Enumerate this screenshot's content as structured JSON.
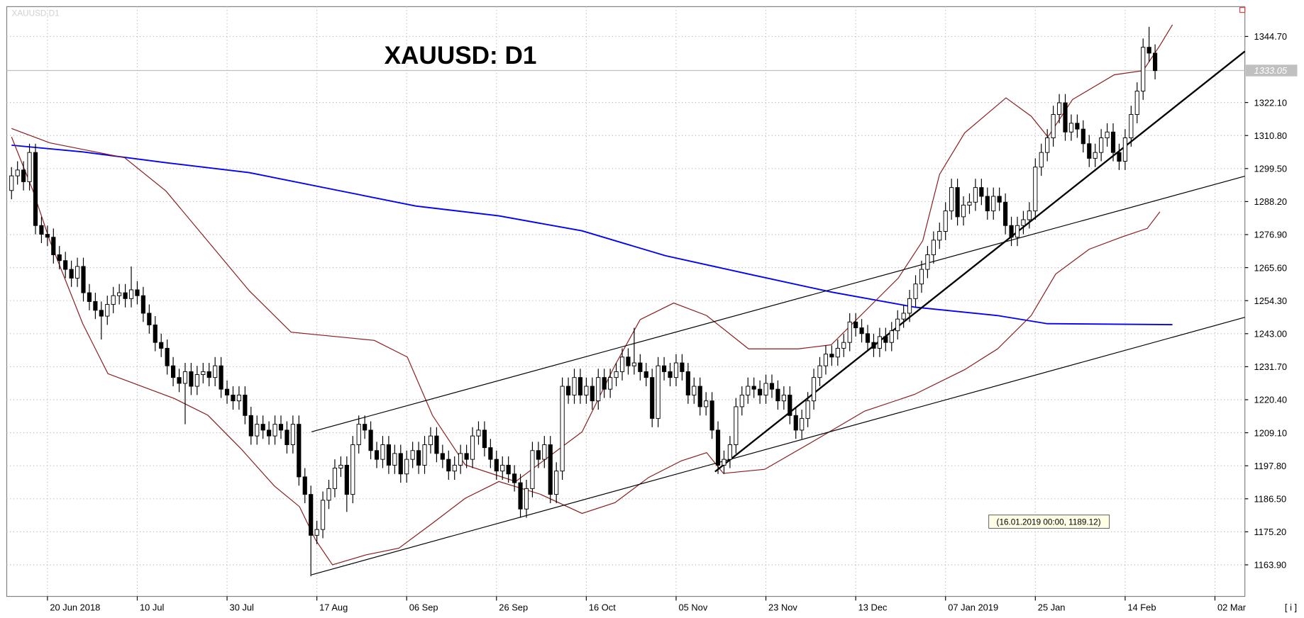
{
  "chart_data": {
    "type": "candlestick",
    "title": "XAUUSD: D1",
    "symbol_label": "XAUUSD,D1",
    "annotation": "(16.01.2019 00:00, 1189.12)",
    "up_color": "#ffffff",
    "down_color": "#000000",
    "grid": true,
    "xlim": [
      -0.8,
      206
    ],
    "ylim": [
      1153.1,
      1354.9
    ],
    "xticks": [
      {
        "value": 6,
        "label": "20 Jun 2018"
      },
      {
        "value": 21,
        "label": "10 Jul"
      },
      {
        "value": 36,
        "label": "30 Jul"
      },
      {
        "value": 51,
        "label": "17 Aug"
      },
      {
        "value": 66,
        "label": "06 Sep"
      },
      {
        "value": 81,
        "label": "26 Sep"
      },
      {
        "value": 96,
        "label": "16 Oct"
      },
      {
        "value": 111,
        "label": "05 Nov"
      },
      {
        "value": 126,
        "label": "23 Nov"
      },
      {
        "value": 141,
        "label": "13 Dec"
      },
      {
        "value": 156,
        "label": "07 Jan 2019"
      },
      {
        "value": 171,
        "label": "25 Jan"
      },
      {
        "value": 186,
        "label": "14 Feb"
      },
      {
        "value": 201,
        "label": "02 Mar"
      }
    ],
    "yticks": [
      {
        "value": 1344.7,
        "label": "1344.70"
      },
      {
        "value": 1322.1,
        "label": "1322.10"
      },
      {
        "value": 1310.8,
        "label": "1310.80"
      },
      {
        "value": 1299.5,
        "label": "1299.50"
      },
      {
        "value": 1288.2,
        "label": "1288.20"
      },
      {
        "value": 1276.9,
        "label": "1276.90"
      },
      {
        "value": 1265.6,
        "label": "1265.60"
      },
      {
        "value": 1254.3,
        "label": "1254.30"
      },
      {
        "value": 1243,
        "label": "1243.00"
      },
      {
        "value": 1231.7,
        "label": "1231.70"
      },
      {
        "value": 1220.4,
        "label": "1220.40"
      },
      {
        "value": 1209.1,
        "label": "1209.10"
      },
      {
        "value": 1197.8,
        "label": "1197.80"
      },
      {
        "value": 1186.5,
        "label": "1186.50"
      },
      {
        "value": 1175.2,
        "label": "1175.20"
      },
      {
        "value": 1163.9,
        "label": "1163.90"
      }
    ],
    "current_price": {
      "value": 1333.05,
      "label": "1333.05"
    },
    "x": [
      0,
      1,
      2,
      3,
      4,
      5,
      6,
      7,
      8,
      9,
      10,
      11,
      12,
      13,
      14,
      15,
      16,
      17,
      18,
      19,
      20,
      21,
      22,
      23,
      24,
      25,
      26,
      27,
      28,
      29,
      30,
      31,
      32,
      33,
      34,
      35,
      36,
      37,
      38,
      39,
      40,
      41,
      42,
      43,
      44,
      45,
      46,
      47,
      48,
      49,
      50,
      51,
      52,
      53,
      54,
      55,
      56,
      57,
      58,
      59,
      60,
      61,
      62,
      63,
      64,
      65,
      66,
      67,
      68,
      69,
      70,
      71,
      72,
      73,
      74,
      75,
      76,
      77,
      78,
      79,
      80,
      81,
      82,
      83,
      84,
      85,
      86,
      87,
      88,
      89,
      90,
      91,
      92,
      93,
      94,
      95,
      96,
      97,
      98,
      99,
      100,
      101,
      102,
      103,
      104,
      105,
      106,
      107,
      108,
      109,
      110,
      111,
      112,
      113,
      114,
      115,
      116,
      117,
      118,
      119,
      120,
      121,
      122,
      123,
      124,
      125,
      126,
      127,
      128,
      129,
      130,
      131,
      132,
      133,
      134,
      135,
      136,
      137,
      138,
      139,
      140,
      141,
      142,
      143,
      144,
      145,
      146,
      147,
      148,
      149,
      150,
      151,
      152,
      153,
      154,
      155,
      156,
      157,
      158,
      159,
      160,
      161,
      162,
      163,
      164,
      165,
      166,
      167,
      168,
      169,
      170,
      171,
      172,
      173,
      174,
      175,
      176,
      177,
      178,
      179,
      180,
      181,
      182,
      183,
      184,
      185,
      186,
      187,
      188,
      189,
      190,
      191
    ],
    "open": [
      1292,
      1297,
      1299,
      1295,
      1305,
      1280,
      1277,
      1276,
      1270,
      1268,
      1265,
      1262,
      1266,
      1257,
      1254,
      1251,
      1249,
      1253,
      1256,
      1257,
      1255,
      1258,
      1256,
      1250,
      1246,
      1240,
      1238,
      1232,
      1228,
      1226,
      1230,
      1225,
      1229,
      1230,
      1228,
      1232,
      1224,
      1222,
      1220,
      1222,
      1215,
      1208,
      1212,
      1210,
      1208,
      1212,
      1210,
      1205,
      1212,
      1194,
      1188,
      1174,
      1176,
      1186,
      1190,
      1197,
      1198,
      1188,
      1205,
      1212,
      1210,
      1203,
      1200,
      1205,
      1198,
      1202,
      1195,
      1200,
      1203,
      1198,
      1205,
      1208,
      1202,
      1200,
      1196,
      1198,
      1202,
      1200,
      1208,
      1210,
      1204,
      1200,
      1196,
      1198,
      1195,
      1192,
      1183,
      1190,
      1203,
      1200,
      1205,
      1188,
      1196,
      1225,
      1222,
      1228,
      1222,
      1225,
      1220,
      1228,
      1224,
      1228,
      1230,
      1235,
      1232,
      1233,
      1230,
      1228,
      1214,
      1232,
      1230,
      1228,
      1233,
      1230,
      1222,
      1225,
      1218,
      1220,
      1210,
      1198,
      1200,
      1205,
      1218,
      1222,
      1225,
      1224,
      1222,
      1226,
      1224,
      1220,
      1222,
      1215,
      1210,
      1214,
      1220,
      1228,
      1232,
      1236,
      1235,
      1238,
      1240,
      1247,
      1245,
      1243,
      1240,
      1238,
      1242,
      1240,
      1244,
      1248,
      1250,
      1255,
      1260,
      1265,
      1270,
      1275,
      1278,
      1285,
      1293,
      1283,
      1287,
      1288,
      1293,
      1290,
      1285,
      1290,
      1288,
      1280,
      1276,
      1280,
      1282,
      1285,
      1300,
      1305,
      1310,
      1318,
      1322,
      1312,
      1315,
      1313,
      1308,
      1303,
      1305,
      1310,
      1312,
      1305,
      1302,
      1310,
      1318,
      1326,
      1341,
      1339
    ],
    "high": [
      1300,
      1302,
      1302,
      1308,
      1308,
      1283,
      1280,
      1279,
      1273,
      1271,
      1268,
      1269,
      1269,
      1260,
      1257,
      1254,
      1256,
      1259,
      1260,
      1260,
      1266,
      1261,
      1259,
      1253,
      1249,
      1243,
      1241,
      1235,
      1231,
      1233,
      1233,
      1232,
      1233,
      1233,
      1235,
      1235,
      1227,
      1225,
      1225,
      1225,
      1218,
      1215,
      1215,
      1213,
      1215,
      1215,
      1213,
      1215,
      1215,
      1197,
      1191,
      1179,
      1189,
      1193,
      1200,
      1201,
      1201,
      1208,
      1215,
      1215,
      1213,
      1206,
      1208,
      1208,
      1205,
      1205,
      1203,
      1206,
      1206,
      1208,
      1211,
      1211,
      1205,
      1203,
      1201,
      1205,
      1205,
      1211,
      1213,
      1213,
      1207,
      1203,
      1201,
      1201,
      1198,
      1195,
      1193,
      1206,
      1206,
      1208,
      1208,
      1199,
      1228,
      1228,
      1231,
      1231,
      1228,
      1228,
      1231,
      1231,
      1231,
      1233,
      1238,
      1238,
      1245,
      1236,
      1233,
      1231,
      1235,
      1235,
      1233,
      1236,
      1236,
      1233,
      1228,
      1228,
      1223,
      1223,
      1213,
      1203,
      1208,
      1221,
      1225,
      1228,
      1228,
      1227,
      1229,
      1229,
      1227,
      1225,
      1225,
      1218,
      1217,
      1223,
      1231,
      1235,
      1239,
      1239,
      1241,
      1243,
      1250,
      1250,
      1248,
      1246,
      1243,
      1245,
      1245,
      1247,
      1251,
      1253,
      1258,
      1263,
      1268,
      1273,
      1278,
      1281,
      1288,
      1296,
      1296,
      1290,
      1291,
      1296,
      1296,
      1293,
      1293,
      1293,
      1291,
      1283,
      1283,
      1285,
      1288,
      1303,
      1308,
      1313,
      1321,
      1325,
      1325,
      1318,
      1318,
      1316,
      1311,
      1308,
      1313,
      1315,
      1315,
      1308,
      1313,
      1321,
      1329,
      1344,
      1348,
      1342
    ],
    "low": [
      1289,
      1294,
      1292,
      1292,
      1277,
      1274,
      1273,
      1267,
      1265,
      1262,
      1259,
      1259,
      1254,
      1251,
      1248,
      1241,
      1246,
      1250,
      1253,
      1252,
      1252,
      1253,
      1247,
      1243,
      1237,
      1235,
      1229,
      1225,
      1223,
      1212,
      1222,
      1222,
      1226,
      1225,
      1225,
      1221,
      1219,
      1217,
      1217,
      1212,
      1205,
      1205,
      1207,
      1205,
      1205,
      1207,
      1202,
      1202,
      1191,
      1185,
      1160,
      1171,
      1173,
      1183,
      1187,
      1194,
      1182,
      1185,
      1202,
      1207,
      1200,
      1197,
      1197,
      1195,
      1195,
      1192,
      1192,
      1197,
      1195,
      1195,
      1202,
      1199,
      1197,
      1193,
      1193,
      1195,
      1197,
      1197,
      1205,
      1201,
      1197,
      1193,
      1193,
      1192,
      1189,
      1180,
      1180,
      1187,
      1197,
      1197,
      1185,
      1185,
      1193,
      1219,
      1219,
      1219,
      1219,
      1217,
      1217,
      1221,
      1221,
      1225,
      1227,
      1229,
      1229,
      1227,
      1225,
      1211,
      1211,
      1227,
      1225,
      1225,
      1227,
      1219,
      1219,
      1215,
      1215,
      1207,
      1195,
      1195,
      1197,
      1202,
      1215,
      1219,
      1221,
      1219,
      1219,
      1221,
      1217,
      1217,
      1212,
      1207,
      1207,
      1211,
      1217,
      1225,
      1229,
      1232,
      1232,
      1235,
      1237,
      1242,
      1240,
      1237,
      1235,
      1235,
      1237,
      1237,
      1241,
      1245,
      1247,
      1252,
      1257,
      1262,
      1267,
      1272,
      1275,
      1282,
      1280,
      1280,
      1284,
      1285,
      1287,
      1282,
      1282,
      1285,
      1277,
      1273,
      1273,
      1277,
      1279,
      1282,
      1297,
      1302,
      1307,
      1315,
      1309,
      1309,
      1310,
      1305,
      1300,
      1300,
      1302,
      1307,
      1302,
      1299,
      1299,
      1307,
      1315,
      1323,
      1336,
      1330
    ],
    "close": [
      1297,
      1299,
      1295,
      1305,
      1280,
      1277,
      1276,
      1270,
      1268,
      1265,
      1262,
      1266,
      1257,
      1254,
      1251,
      1249,
      1253,
      1256,
      1257,
      1255,
      1258,
      1256,
      1250,
      1246,
      1240,
      1238,
      1232,
      1228,
      1226,
      1230,
      1225,
      1229,
      1230,
      1228,
      1232,
      1224,
      1222,
      1220,
      1222,
      1215,
      1208,
      1212,
      1210,
      1208,
      1212,
      1210,
      1205,
      1212,
      1194,
      1188,
      1174,
      1176,
      1186,
      1190,
      1197,
      1198,
      1188,
      1205,
      1212,
      1210,
      1203,
      1200,
      1205,
      1198,
      1202,
      1195,
      1200,
      1203,
      1198,
      1205,
      1208,
      1202,
      1200,
      1196,
      1198,
      1202,
      1200,
      1208,
      1210,
      1204,
      1200,
      1196,
      1198,
      1195,
      1192,
      1183,
      1190,
      1203,
      1200,
      1205,
      1188,
      1196,
      1225,
      1222,
      1228,
      1222,
      1225,
      1220,
      1228,
      1224,
      1228,
      1230,
      1235,
      1232,
      1233,
      1230,
      1228,
      1214,
      1232,
      1230,
      1228,
      1233,
      1230,
      1222,
      1225,
      1218,
      1220,
      1210,
      1198,
      1200,
      1205,
      1218,
      1222,
      1225,
      1224,
      1222,
      1226,
      1224,
      1220,
      1222,
      1215,
      1210,
      1214,
      1220,
      1228,
      1232,
      1236,
      1235,
      1238,
      1240,
      1247,
      1245,
      1243,
      1240,
      1238,
      1242,
      1240,
      1244,
      1248,
      1250,
      1255,
      1260,
      1265,
      1270,
      1275,
      1278,
      1285,
      1293,
      1283,
      1287,
      1288,
      1293,
      1290,
      1285,
      1290,
      1288,
      1280,
      1276,
      1280,
      1282,
      1285,
      1300,
      1305,
      1310,
      1318,
      1322,
      1312,
      1315,
      1313,
      1308,
      1303,
      1305,
      1310,
      1312,
      1305,
      1302,
      1310,
      1318,
      1326,
      1341,
      1339,
      1333
    ],
    "lines": [
      {
        "color": "#0000ff",
        "width": 1.6,
        "x": [
          0,
          11.9,
          25.8,
          39.7,
          53.6,
          67.5,
          81.4,
          95.3,
          109.2,
          123.1,
          137,
          150.8,
          164.7,
          173,
          193.9
        ],
        "values": [
          1307.5,
          1305.2,
          1301.5,
          1298.1,
          1292.4,
          1286.7,
          1283.3,
          1278.2,
          1269.7,
          1263.4,
          1257.2,
          1252.1,
          1249.2,
          1246.4,
          1246.1
        ]
      },
      {
        "color": "#8b1a1a",
        "width": 1,
        "x": [
          0,
          6.4,
          18.9,
          25.8,
          39.7,
          46.7,
          60.6,
          66.1,
          70.3,
          75.8,
          84.2,
          95.3,
          100.8,
          105,
          110.6,
          116.1,
          123.1,
          131.4,
          136.9,
          142.5,
          148.1,
          152.2,
          155,
          159.2,
          166.1,
          170.3,
          173.1,
          177.2,
          184.2,
          189,
          191.8,
          193.9
        ],
        "values": [
          1313.2,
          1308.3,
          1303.2,
          1291.8,
          1257.7,
          1243.5,
          1240.7,
          1235,
          1215.1,
          1198.1,
          1192.4,
          1209.4,
          1232.2,
          1247.8,
          1253.5,
          1249.2,
          1237.8,
          1237.8,
          1239.2,
          1250.6,
          1262,
          1274.8,
          1297.5,
          1311.7,
          1323.7,
          1317.4,
          1310.3,
          1323.1,
          1331.6,
          1333,
          1341.6,
          1348.7
        ]
      },
      {
        "color": "#8b1a1a",
        "width": 1,
        "x": [
          0,
          3.6,
          6.4,
          11.9,
          16.1,
          27.2,
          32.8,
          38.3,
          43.9,
          48.1,
          50.8,
          53.6,
          59.2,
          64.7,
          70.3,
          75.8,
          81.4,
          88.3,
          95.3,
          100.8,
          106.4,
          111.9,
          116.1,
          118.9,
          125.8,
          134.2,
          142.5,
          150.8,
          159.2,
          164.7,
          170.3,
          174.4,
          180,
          185.6,
          189.7,
          191.8
        ],
        "values": [
          1310.3,
          1291.8,
          1274.8,
          1246.4,
          1229.3,
          1220.8,
          1215.1,
          1203.7,
          1190.9,
          1183.8,
          1172.4,
          1163.9,
          1167.3,
          1169.6,
          1178.1,
          1186.7,
          1192.4,
          1188.1,
          1181.5,
          1185.2,
          1193.8,
          1199.5,
          1202.3,
          1195.2,
          1196.6,
          1206.5,
          1216.5,
          1222.2,
          1230.7,
          1237.8,
          1249.2,
          1263.4,
          1271.9,
          1276.2,
          1279,
          1284.7
        ]
      },
      {
        "color": "#000000",
        "width": 1,
        "x": [
          50.1,
          206
        ],
        "values": [
          1209.4,
          1296.9
        ]
      },
      {
        "color": "#000000",
        "width": 1,
        "x": [
          50.1,
          206
        ],
        "values": [
          1160.5,
          1248.6
        ]
      },
      {
        "color": "#000000",
        "width": 2,
        "x": [
          117.5,
          206
        ],
        "values": [
          1195.8,
          1339.6
        ]
      }
    ]
  }
}
